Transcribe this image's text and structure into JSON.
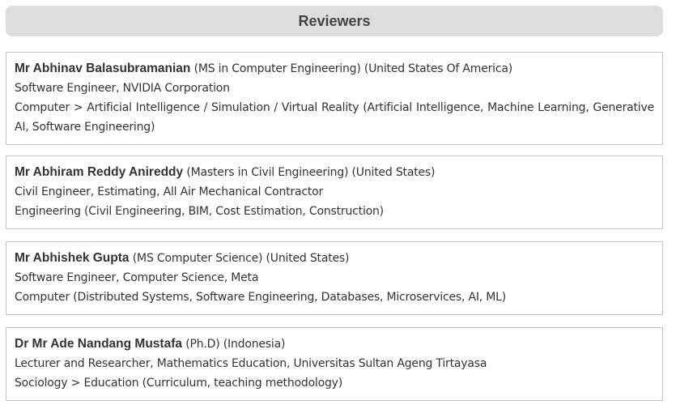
{
  "header": {
    "title": "Reviewers"
  },
  "reviewers": [
    {
      "name": "Mr Abhinav Balasubramanian",
      "degree": "(MS in Computer Engineering)",
      "country": "(United States Of America)",
      "position": "Software Engineer, NVIDIA Corporation",
      "field": "Computer > Artificial Intelligence / Simulation / Virtual Reality (Artificial Intelligence, Machine Learning, Generative AI, Software Engineering)"
    },
    {
      "name": "Mr Abhiram Reddy Anireddy",
      "degree": "(Masters in Civil Engineering)",
      "country": "(United States)",
      "position": "Civil Engineer, Estimating, All Air Mechanical Contractor",
      "field": "Engineering (Civil Engineering, BIM, Cost Estimation, Construction)"
    },
    {
      "name": "Mr Abhishek Gupta",
      "degree": "(MS Computer Science)",
      "country": "(United States)",
      "position": "Software Engineer, Computer Science, Meta",
      "field": "Computer (Distributed Systems, Software Engineering, Databases, Microservices, AI, ML)"
    },
    {
      "name": "Dr Mr Ade Nandang Mustafa",
      "degree": "(Ph.D)",
      "country": "(Indonesia)",
      "position": "Lecturer and Researcher, Mathematics Education, Universitas Sultan Ageng Tirtayasa",
      "field": "Sociology > Education (Curriculum, teaching methodology)"
    }
  ]
}
